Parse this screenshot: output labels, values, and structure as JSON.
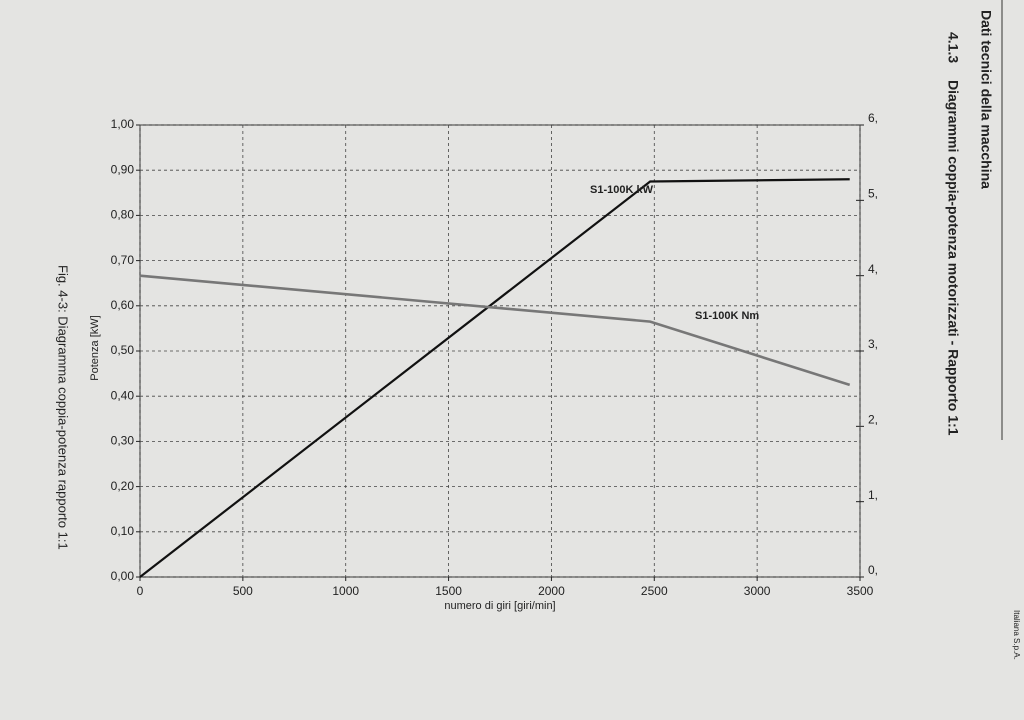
{
  "header": {
    "section": "Dati tecnici della macchina",
    "number": "4.1.3",
    "heading": "Diagrammi coppia-potenza motorizzati - Rapporto 1:1",
    "company": "Italiana S.p.A."
  },
  "chart_data": {
    "type": "line",
    "caption": "Fig. 4-3: Diagramma coppia-potenza rapporto 1:1",
    "x_label": "numero di giri [giri/min]",
    "y_label": "Potenza [kW]",
    "x": [
      0,
      2480,
      3450
    ],
    "series": [
      {
        "name": "S1-100K kW",
        "color": "#111111",
        "values": [
          0,
          0.875,
          0.88
        ]
      },
      {
        "name": "S1-100K Nm",
        "color": "#777777",
        "axis": "y2",
        "values": [
          4.0,
          3.39,
          2.55
        ]
      }
    ],
    "xlim": [
      0,
      3500
    ],
    "xticks": [
      0,
      500,
      1000,
      1500,
      2000,
      2500,
      3000,
      3500
    ],
    "ylim": [
      0,
      1
    ],
    "yticks": [
      {
        "value": 0,
        "label": "0,00"
      },
      {
        "value": 0.1,
        "label": "0,10"
      },
      {
        "value": 0.2,
        "label": "0,20"
      },
      {
        "value": 0.3,
        "label": "0,30"
      },
      {
        "value": 0.4,
        "label": "0,40"
      },
      {
        "value": 0.5,
        "label": "0,50"
      },
      {
        "value": 0.6,
        "label": "0,60"
      },
      {
        "value": 0.7,
        "label": "0,70"
      },
      {
        "value": 0.8,
        "label": "0,80"
      },
      {
        "value": 0.9,
        "label": "0,90"
      },
      {
        "value": 1,
        "label": "1,00"
      }
    ],
    "y2lim": [
      0,
      6
    ],
    "y2ticks": [
      {
        "value": 0,
        "label": "0,"
      },
      {
        "value": 1,
        "label": "1,"
      },
      {
        "value": 2,
        "label": "2,"
      },
      {
        "value": 3,
        "label": "3,"
      },
      {
        "value": 4,
        "label": "4,"
      },
      {
        "value": 5,
        "label": "5,"
      },
      {
        "value": 6,
        "label": "6,"
      }
    ],
    "grid": true
  }
}
